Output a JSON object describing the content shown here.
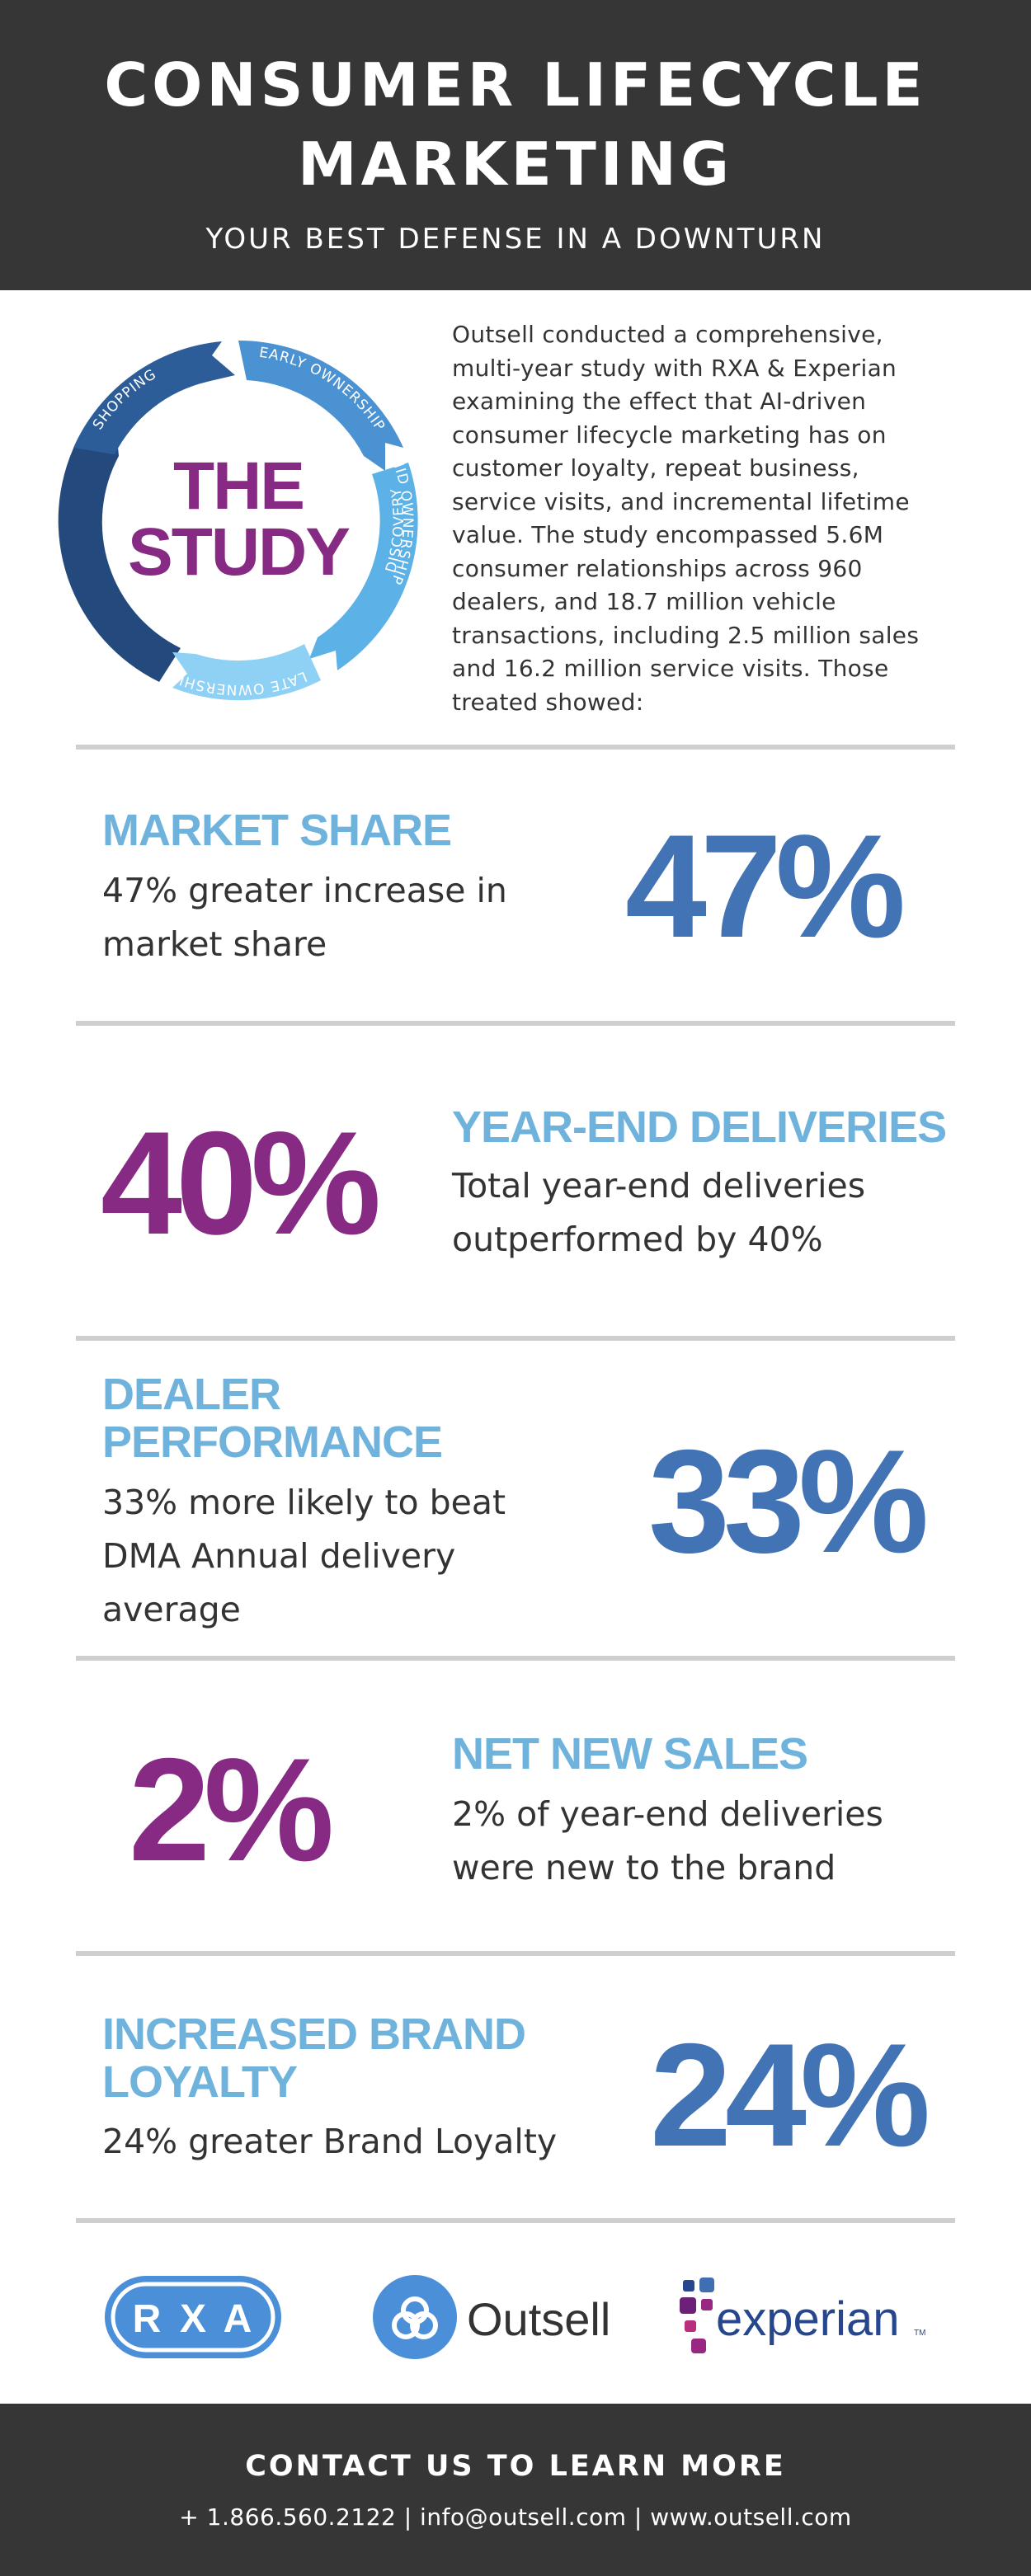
{
  "header": {
    "title_line1": "CONSUMER LIFECYCLE",
    "title_line2": "MARKETING",
    "subtitle": "YOUR BEST DEFENSE IN A DOWNTURN"
  },
  "study": {
    "wheel_title_line1": "THE",
    "wheel_title_line2": "STUDY",
    "segments": [
      "SHOPPING",
      "EARLY OWNERSHIP",
      "MID OWNERSHIP",
      "LATE OWNERSHIP",
      "DISCOVERY"
    ],
    "lines": [
      "Outsell conducted a comprehensive,",
      "multi-year study with RXA & Experian",
      "examining the effect that AI-driven",
      "consumer lifecycle marketing has on",
      "customer loyalty, repeat business,",
      "service visits, and incremental lifetime",
      "value. The study encompassed 5.6M",
      "consumer relationships across 960",
      "dealers, and 18.7 million vehicle",
      "transactions, including 2.5 million sales",
      "and 16.2 million service visits. Those",
      "treated showed:"
    ]
  },
  "stats": [
    {
      "title_lines": [
        "MARKET SHARE"
      ],
      "desc_lines": [
        "47% greater increase in",
        "market share"
      ],
      "value": "47%"
    },
    {
      "title_lines": [
        "YEAR-END DELIVERIES"
      ],
      "desc_lines": [
        "Total year-end deliveries",
        "outperformed by 40%"
      ],
      "value": "40%"
    },
    {
      "title_lines": [
        "DEALER",
        "PERFORMANCE"
      ],
      "desc_lines": [
        "33% more likely to beat",
        "DMA Annual delivery",
        "average"
      ],
      "value": "33%"
    },
    {
      "title_lines": [
        "NET NEW SALES"
      ],
      "desc_lines": [
        "2% of year-end deliveries",
        "were new to the brand"
      ],
      "value": "2%"
    },
    {
      "title_lines": [
        "INCREASED BRAND",
        "LOYALTY"
      ],
      "desc_lines": [
        "24% greater Brand Loyalty"
      ],
      "value": "24%"
    }
  ],
  "logos": {
    "rxa_r": "R",
    "rxa_x": "X",
    "rxa_a": "A",
    "outsell": "Outsell",
    "experian": "experian",
    "experian_tm": "TM"
  },
  "footer": {
    "cta": "CONTACT US TO LEARN MORE",
    "contact": "+ 1.866.560.2122  |  info@outsell.com  |  www.outsell.com"
  },
  "colors": {
    "header_bg": "#363636",
    "light_blue": "#6fb3dc",
    "blue": "#4273b4",
    "purple": "#862a83",
    "divider": "#cfcfcf"
  }
}
